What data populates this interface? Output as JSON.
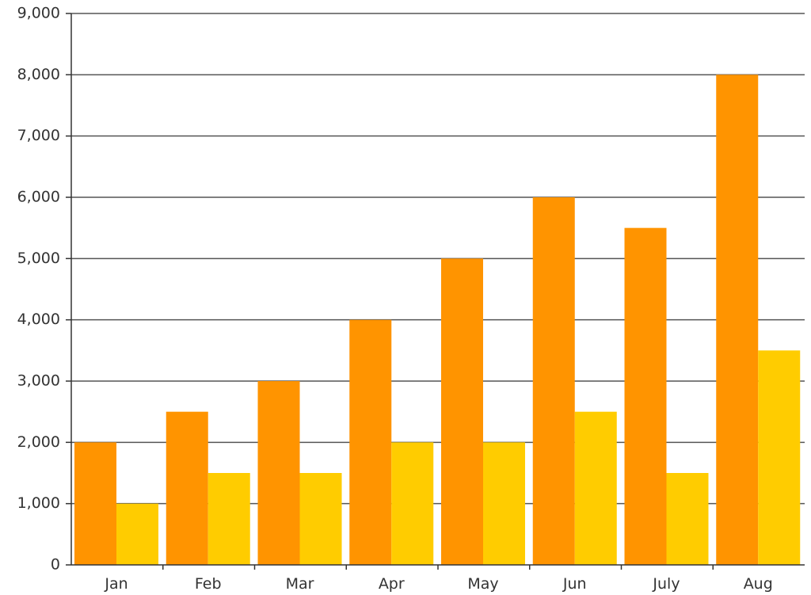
{
  "chart_data": {
    "type": "bar",
    "title": "",
    "xlabel": "",
    "ylabel": "",
    "categories": [
      "Jan",
      "Feb",
      "Mar",
      "Apr",
      "May",
      "Jun",
      "July",
      "Aug"
    ],
    "series": [
      {
        "values": [
          2000,
          2500,
          3000,
          4000,
          5000,
          6000,
          5500,
          8000
        ],
        "color": "#FF9400"
      },
      {
        "values": [
          1000,
          1500,
          1500,
          2000,
          2000,
          2500,
          1500,
          3500
        ],
        "color": "#FFCC00"
      }
    ],
    "ylim": [
      0,
      9000
    ],
    "yticks": [
      0,
      1000,
      2000,
      3000,
      4000,
      5000,
      6000,
      7000,
      8000,
      9000
    ],
    "ytick_labels": [
      "0",
      "1,000",
      "2,000",
      "3,000",
      "4,000",
      "5,000",
      "6,000",
      "7,000",
      "8,000",
      "9,000"
    ],
    "grid": true,
    "legend": "none"
  }
}
